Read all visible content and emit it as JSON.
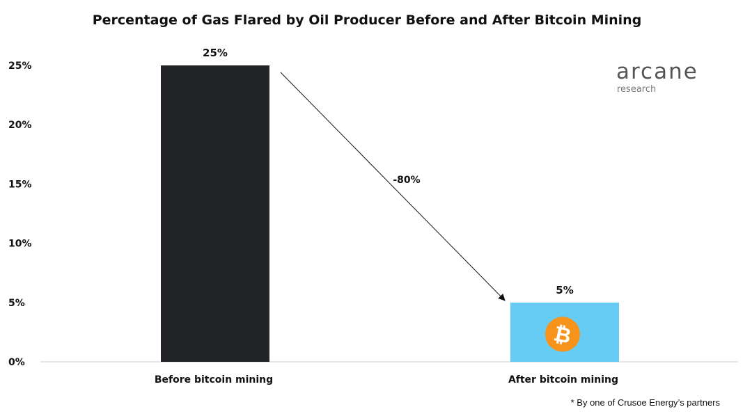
{
  "chart_data": {
    "type": "bar",
    "title": "Percentage of Gas Flared by Oil Producer Before and After Bitcoin Mining",
    "categories": [
      "Before bitcoin mining",
      "After bitcoin mining"
    ],
    "values": [
      25,
      5
    ],
    "data_labels": [
      "25%",
      "5%"
    ],
    "colors": [
      "#222428",
      "#66CCF3"
    ],
    "ylim": [
      0,
      25
    ],
    "yticks": [
      0,
      5,
      10,
      15,
      20,
      25
    ],
    "ytick_labels": [
      "0%",
      "5%",
      "10%",
      "15%",
      "20%",
      "25%"
    ],
    "xlabel": "",
    "ylabel": "",
    "grid": false,
    "annotation": {
      "text": "-80%",
      "type": "arrow",
      "from_category": "Before bitcoin mining",
      "to_category": "After bitcoin mining"
    },
    "bar_icon": {
      "category": "After bitcoin mining",
      "icon": "bitcoin-icon",
      "color": "#F7931A",
      "glyph": "₿"
    }
  },
  "logo": {
    "main": "arcane",
    "sub": "research"
  },
  "footnote": "* By one of Crusoe Energy’s partners"
}
